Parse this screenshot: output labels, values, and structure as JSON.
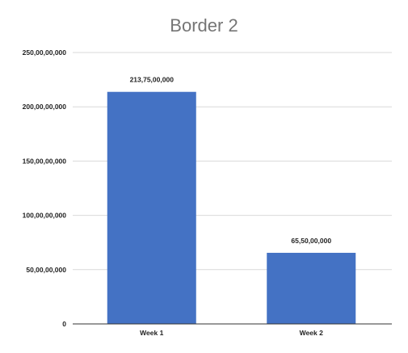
{
  "chart_data": {
    "type": "bar",
    "title": "Border 2",
    "categories": [
      "Week 1",
      "Week 2"
    ],
    "values": [
      2137500000,
      655000000
    ],
    "data_labels": [
      "213,75,00,000",
      "65,50,00,000"
    ],
    "ylim": [
      0,
      2500000000
    ],
    "yticks": [
      0,
      500000000,
      1000000000,
      1500000000,
      2000000000,
      2500000000
    ],
    "ytick_labels": [
      "0",
      "50,00,00,000",
      "100,00,00,000",
      "150,00,00,000",
      "200,00,00,000",
      "250,00,00,000"
    ],
    "bar_color": "#4472c4",
    "grid": true,
    "xlabel": "",
    "ylabel": ""
  }
}
